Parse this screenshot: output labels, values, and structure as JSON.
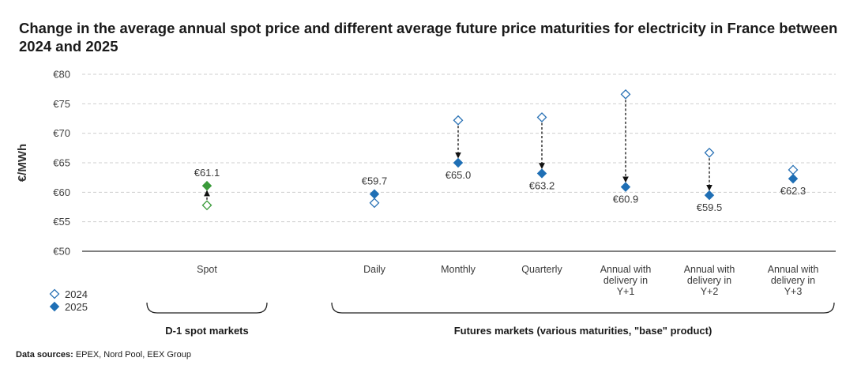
{
  "title": "Change in the average annual spot price and different average future price maturities for electricity in France between 2024 and 2025",
  "source_label": "Data sources:",
  "source_text": " EPEX, Nord Pool, EEX Group",
  "colors": {
    "y2024": "#2a72b5",
    "y2025": "#1f6fb5",
    "spot2024": "#3a9a3a",
    "spot2025": "#3a9a3a",
    "grid": "#cfcfcf",
    "axis": "#333333"
  },
  "chart_data": {
    "type": "scatter",
    "title": "Change in the average annual spot price and different average future price maturities for electricity in France between 2024 and 2025",
    "ylabel": "€/MWh",
    "xlabel": "",
    "ylim": [
      50,
      80
    ],
    "yticks": [
      "€50",
      "€55",
      "€60",
      "€65",
      "€70",
      "€75",
      "€80"
    ],
    "grid": true,
    "legend_position": "bottom-left",
    "categories": [
      [
        "Spot"
      ],
      [
        "Daily"
      ],
      [
        "Monthly"
      ],
      [
        "Quarterly"
      ],
      [
        "Annual with",
        "delivery in",
        "Y+1"
      ],
      [
        "Annual with",
        "delivery in",
        "Y+2"
      ],
      [
        "Annual with",
        "delivery in",
        "Y+3"
      ]
    ],
    "series": [
      {
        "name": "2024",
        "values": [
          57.8,
          58.2,
          72.2,
          72.7,
          76.6,
          66.7,
          63.8
        ]
      },
      {
        "name": "2025",
        "values": [
          61.1,
          59.7,
          65.0,
          63.2,
          60.9,
          59.5,
          62.3
        ]
      }
    ],
    "data_labels": [
      "€61.1",
      "€59.7",
      "€65.0",
      "€63.2",
      "€60.9",
      "€59.5",
      "€62.3"
    ],
    "groups": [
      {
        "label": "D-1 spot markets",
        "categories": [
          0
        ]
      },
      {
        "label": "Futures markets (various maturities, \"base\" product)",
        "categories": [
          1,
          2,
          3,
          4,
          5,
          6
        ]
      }
    ]
  }
}
